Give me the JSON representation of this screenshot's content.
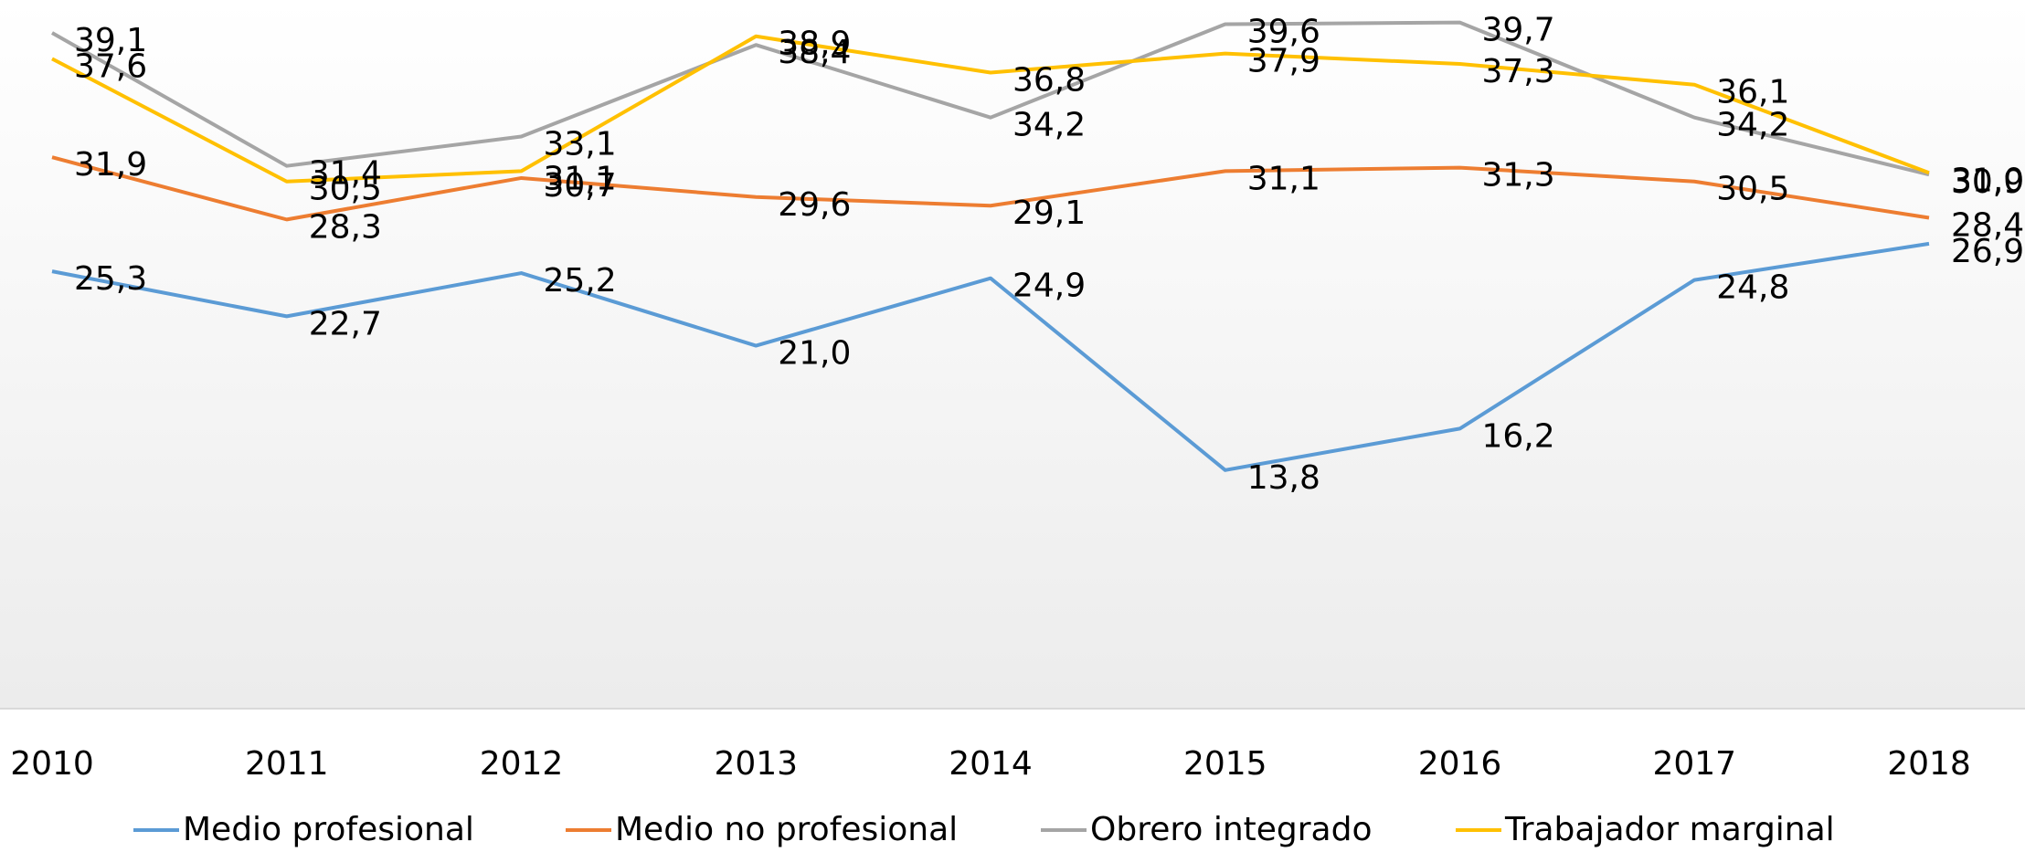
{
  "chart_data": {
    "type": "line",
    "categories": [
      "2010",
      "2011",
      "2012",
      "2013",
      "2014",
      "2015",
      "2016",
      "2017",
      "2018"
    ],
    "ylim": [
      0,
      41
    ],
    "legend": "bottom",
    "series": [
      {
        "name": "Medio profesional",
        "color": "#5b9bd5",
        "values": [
          25.3,
          22.7,
          25.2,
          21.0,
          24.9,
          13.8,
          16.2,
          24.8,
          26.9
        ],
        "value_labels": [
          "25,3",
          "22,7",
          "25,2",
          "21,0",
          "24,9",
          "13,8",
          "16,2",
          "24,8",
          "26,9"
        ]
      },
      {
        "name": "Medio no profesional",
        "color": "#ed7d31",
        "values": [
          31.9,
          28.3,
          30.7,
          29.6,
          29.1,
          31.1,
          31.3,
          30.5,
          28.4
        ],
        "value_labels": [
          "31,9",
          "28,3",
          "30,7",
          "29,6",
          "29,1",
          "31,1",
          "31,3",
          "30,5",
          "28,4"
        ]
      },
      {
        "name": "Obrero integrado",
        "color": "#a5a5a5",
        "values": [
          39.1,
          31.4,
          33.1,
          38.4,
          34.2,
          39.6,
          39.7,
          34.2,
          30.9
        ],
        "value_labels": [
          "39,1",
          "31,4",
          "33,1",
          "38,4",
          "34,2",
          "39,6",
          "39,7",
          "34,2",
          "30,9"
        ]
      },
      {
        "name": "Trabajador marginal",
        "color": "#ffc000",
        "values": [
          37.6,
          30.5,
          31.1,
          38.9,
          36.8,
          37.9,
          37.3,
          36.1,
          31.0
        ],
        "value_labels": [
          "37,6",
          "30,5",
          "31,1",
          "38,9",
          "36,8",
          "37,9",
          "37,3",
          "36,1",
          "31,0"
        ]
      }
    ]
  }
}
